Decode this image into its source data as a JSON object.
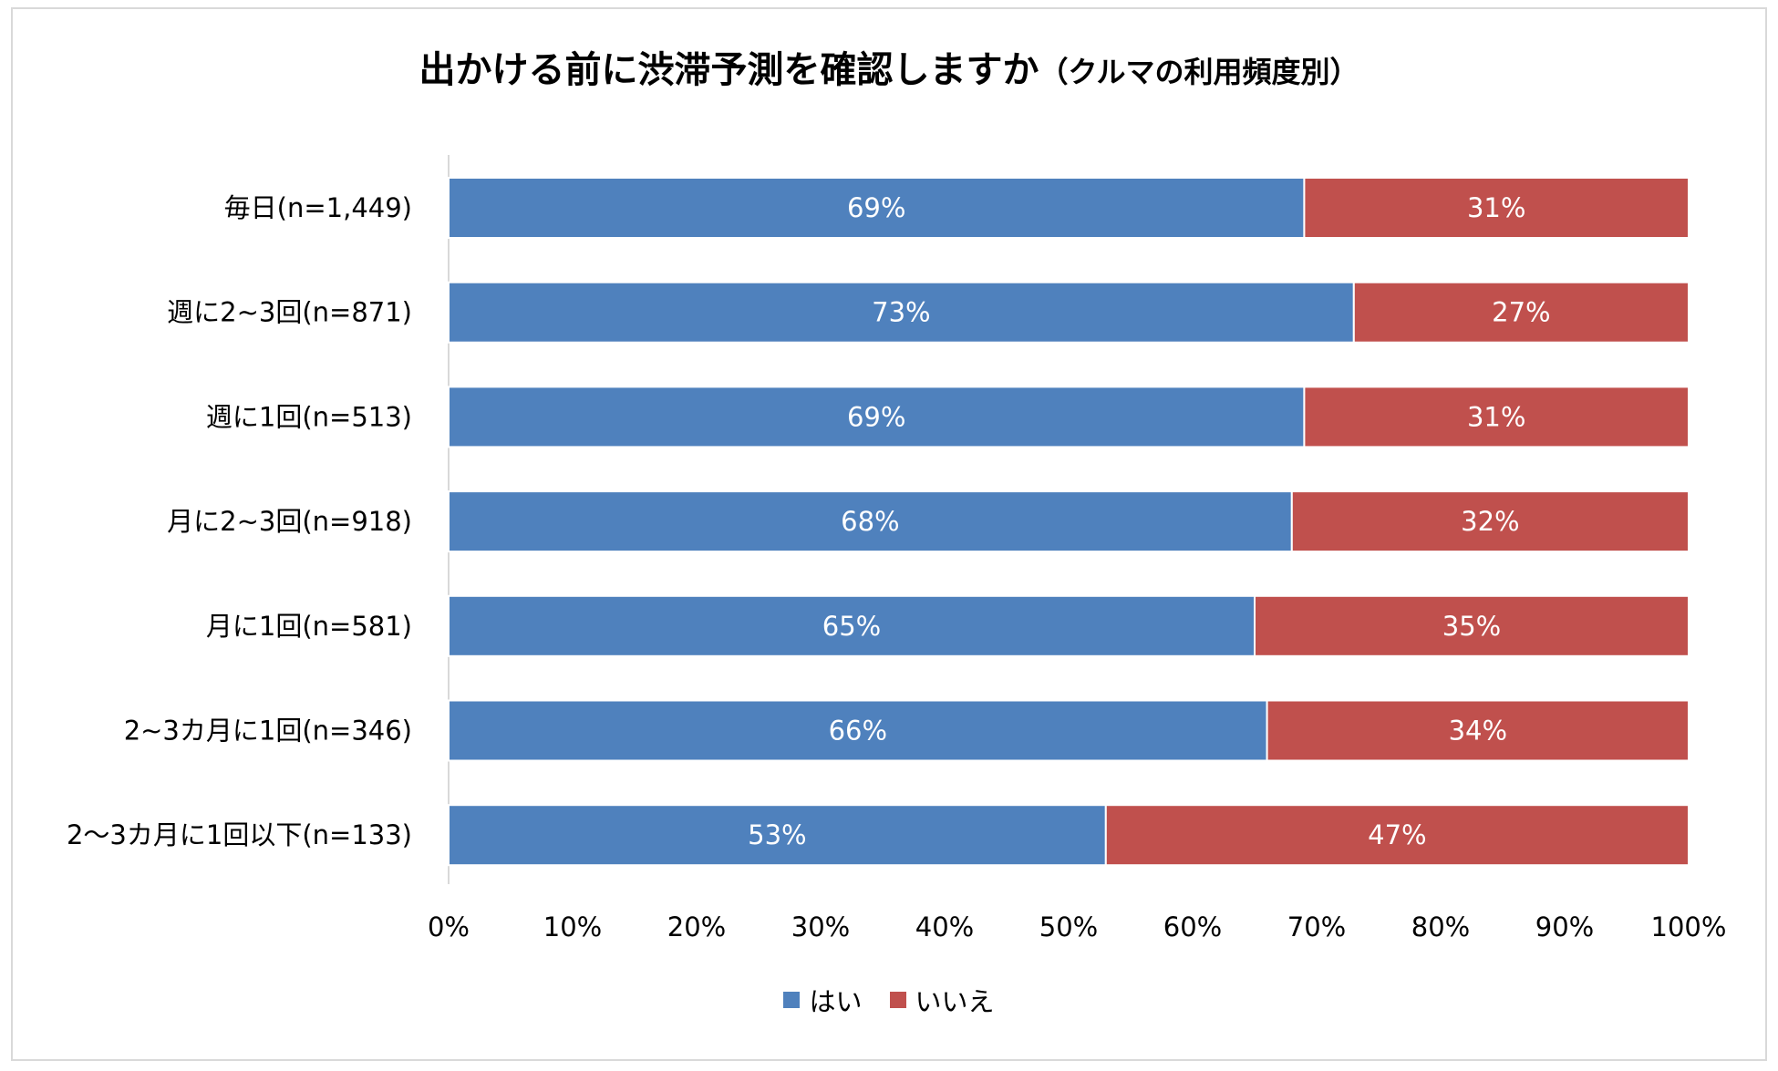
{
  "chart_data": {
    "type": "bar",
    "orientation": "horizontal",
    "stacked": "percent",
    "title": "出かける前に渋滞予測を確認しますか",
    "subtitle": "（クルマの利用頻度別）",
    "categories": [
      "毎日(n=1,449)",
      "週に2~3回(n=871)",
      "週に1回(n=513)",
      "月に2~3回(n=918)",
      "月に1回(n=581)",
      "2~3カ月に1回(n=346)",
      "2～3カ月に1回以下(n=133)"
    ],
    "series": [
      {
        "name": "はい",
        "color": "#4f81bd",
        "values": [
          69,
          73,
          69,
          68,
          65,
          66,
          53
        ],
        "labels": [
          "69%",
          "73%",
          "69%",
          "68%",
          "65%",
          "66%",
          "53%"
        ]
      },
      {
        "name": "いいえ",
        "color": "#c0504d",
        "values": [
          31,
          27,
          31,
          32,
          35,
          34,
          47
        ],
        "labels": [
          "31%",
          "27%",
          "31%",
          "32%",
          "35%",
          "34%",
          "47%"
        ]
      }
    ],
    "xlim": [
      0,
      100
    ],
    "xticks": [
      "0%",
      "10%",
      "20%",
      "30%",
      "40%",
      "50%",
      "60%",
      "70%",
      "80%",
      "90%",
      "100%"
    ],
    "grid": false,
    "legend_position": "bottom"
  }
}
